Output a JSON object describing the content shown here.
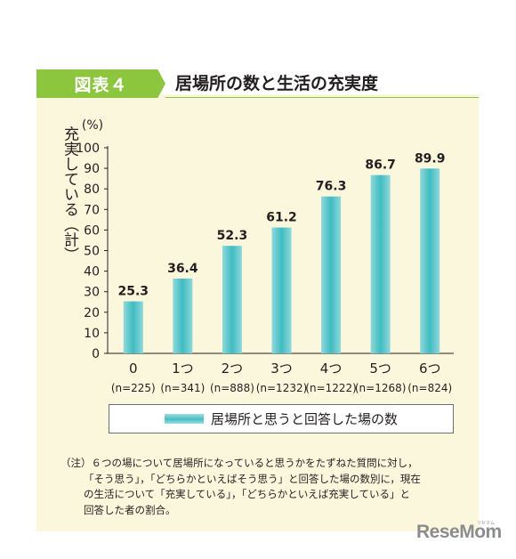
{
  "header": {
    "figure_label": "図表４",
    "title": "居場所の数と生活の充実度"
  },
  "chart_data": {
    "type": "bar",
    "title": "居場所の数と生活の充実度",
    "unit_label": "(%)",
    "ylabel": "充実している（計）",
    "ylim": [
      0,
      100
    ],
    "yticks": [
      0,
      10,
      20,
      30,
      40,
      50,
      60,
      70,
      80,
      90,
      100
    ],
    "categories": [
      "0",
      "1つ",
      "2つ",
      "3つ",
      "4つ",
      "5つ",
      "6つ"
    ],
    "category_n": [
      "(n=225)",
      "(n=341)",
      "(n=888)",
      "(n=1232)",
      "(n=1222)",
      "(n=1268)",
      "(n=824)"
    ],
    "series": [
      {
        "name": "居場所と思うと回答した場の数",
        "values": [
          25.3,
          36.4,
          52.3,
          61.2,
          76.3,
          86.7,
          89.9
        ]
      }
    ],
    "value_labels": [
      "25.3",
      "36.4",
      "52.3",
      "61.2",
      "76.3",
      "86.7",
      "89.9"
    ],
    "bar_color": "#45bfc4",
    "grid": false,
    "legend_position": "bottom"
  },
  "legend": {
    "label": "居場所と思うと回答した場の数"
  },
  "note": {
    "lines": [
      "（注）６つの場について居場所になっていると思うかをたずねた質問に対し，",
      "「そう思う」，「どちらかといえばそう思う」と回答した場の数別に，現在",
      "の生活について「充実している」，「どちらかといえば充実している」と",
      "回答した者の割合。"
    ]
  },
  "watermark": {
    "text": "ReseMom",
    "small": "リセマム"
  }
}
